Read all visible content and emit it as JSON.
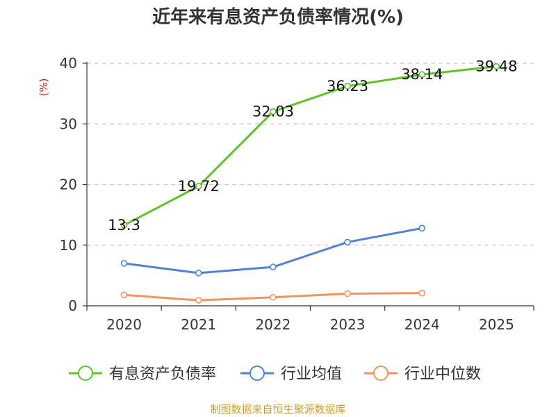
{
  "title": "近年来有息资产负债率情况(%)",
  "source": "制图数据来自恒生聚源数据库",
  "chart_data": {
    "type": "line",
    "title": "近年来有息资产负债率情况(%)",
    "ylabel": "(%)",
    "xlabel": "",
    "categories": [
      "2020",
      "2021",
      "2022",
      "2023",
      "2024",
      "2025"
    ],
    "ylim": [
      0,
      40
    ],
    "yticks": [
      0,
      10,
      20,
      30,
      40
    ],
    "grid": true,
    "legend_position": "bottom",
    "series": [
      {
        "name": "有息资产负债率",
        "color": "#5cc426",
        "values": [
          13.3,
          19.72,
          32.03,
          36.23,
          38.14,
          39.48
        ],
        "labels": [
          "13.3",
          "19.72",
          "32.03",
          "36.23",
          "38.14",
          "39.48"
        ]
      },
      {
        "name": "行业均值",
        "color": "#4f81d7",
        "values": [
          7.0,
          5.4,
          6.4,
          10.5,
          12.8,
          null
        ]
      },
      {
        "name": "行业中位数",
        "color": "#f0935f",
        "values": [
          1.8,
          0.9,
          1.4,
          2.0,
          2.1,
          null
        ]
      }
    ]
  }
}
